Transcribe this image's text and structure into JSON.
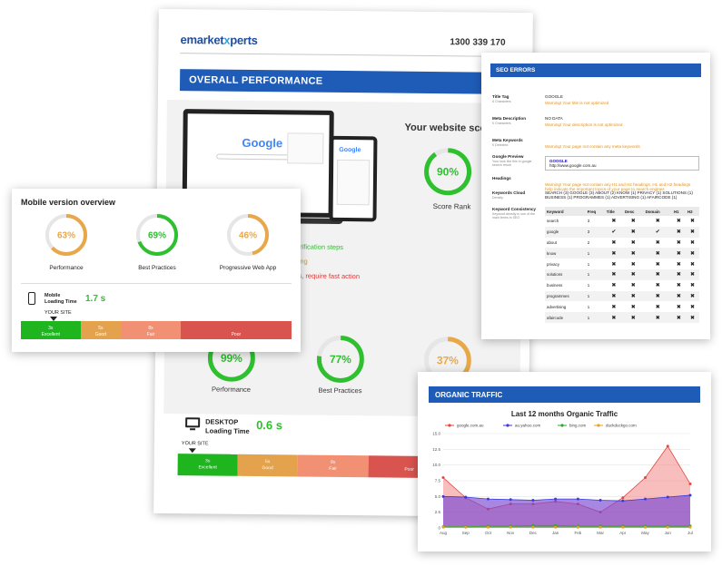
{
  "main_report": {
    "logo_prefix": "emarket",
    "logo_x": "x",
    "logo_suffix": "perts",
    "phone": "1300 339 170",
    "banner": "OVERALL PERFORMANCE",
    "google_word": "Google",
    "score_title": "Your website score",
    "score_value": "90%",
    "score_percent": 90,
    "score_rank_label": "Score Rank",
    "legend_lines": [
      {
        "text": "verification steps",
        "color": "#2ec02e"
      },
      {
        "text": "rning",
        "color": "#e2911c"
      },
      {
        "text": "ors, require fast action",
        "color": "#e03333"
      }
    ],
    "desktop_scores": [
      {
        "label": "Performance",
        "value": "99%",
        "percent": 99,
        "color": "#2ec02e"
      },
      {
        "label": "Best Practices",
        "value": "77%",
        "percent": 77,
        "color": "#2ec02e"
      },
      {
        "label": "",
        "value": "37%",
        "percent": 37,
        "color": "#e8a84a"
      }
    ],
    "desktop_label": "DESKTOP",
    "desktop_sub": "Loading Time",
    "desktop_time": "0.6 s",
    "your_site": "YOUR SITE",
    "speed_segments": [
      {
        "time": "3s",
        "label": "Excellent",
        "color": "#1fb51f"
      },
      {
        "time": "5s",
        "label": "Good",
        "color": "#e3a24b"
      },
      {
        "time": "8s",
        "label": "Fair",
        "color": "#f19072"
      },
      {
        "time": "",
        "label": "Poor",
        "color": "#d9534f"
      }
    ]
  },
  "mobile": {
    "title": "Mobile version overview",
    "scores": [
      {
        "label": "Performance",
        "value": "63%",
        "percent": 63,
        "color": "#e8a84a"
      },
      {
        "label": "Best Practices",
        "value": "69%",
        "percent": 69,
        "color": "#2ec02e"
      },
      {
        "label": "Progressive Web App",
        "value": "46%",
        "percent": 46,
        "color": "#e8a84a"
      }
    ],
    "loading_label": "Mobile",
    "loading_sub": "Loading Time",
    "loading_time": "1.7 s",
    "your_site": "YOUR SITE",
    "segments": [
      {
        "time": "3s",
        "label": "Excellent",
        "color": "#1fb51f"
      },
      {
        "time": "5s",
        "label": "Good",
        "color": "#e3a24b"
      },
      {
        "time": "8s",
        "label": "Fair",
        "color": "#f19072"
      },
      {
        "time": "",
        "label": "Poor",
        "color": "#d9534f"
      }
    ]
  },
  "seo": {
    "banner": "SEO ERRORS",
    "rows": [
      {
        "label": "Title Tag",
        "sub": "6 Characters",
        "value": "GOOGLE",
        "warning": "Warning! Your title is not optimized"
      },
      {
        "label": "Meta Description",
        "sub": "0 Characters",
        "value": "NO DATA",
        "warning": "Warning! Your description is not optimized"
      },
      {
        "label": "Meta Keywords",
        "sub": "0 Detected",
        "value": "",
        "warning": "Warning! Your page not contain any meta keywords"
      },
      {
        "label": "Google Preview",
        "sub": "Your look like this in google search result",
        "value": "",
        "warning": ""
      },
      {
        "label": "Headings",
        "sub": "",
        "value": "",
        "warning": "Warning! Your page not contain any H1 and H2 headings. H1 and H2 headings help indicate the important topics of your page to search engines"
      },
      {
        "label": "Keywords Cloud",
        "sub": "Density",
        "value": "SEARCH (3)   GOOGLE (3)   ABOUT (2)   KNOW (1)   PRIVACY (1)   SOLUTIONS (1)   BUSINESS (1)   PROGRAMMES (1)   ADVERTISING (1)   AFAIRCODE (1)",
        "warning": ""
      },
      {
        "label": "Keyword Consistency",
        "sub": "Keyword density is one of the main terms in SEO",
        "value": "",
        "warning": ""
      }
    ],
    "preview_title": "GOOGLE",
    "preview_url": "http://www.google.com.au",
    "table_headers": [
      "Keyword",
      "Freq",
      "Title",
      "Desc",
      "Domain",
      "H1",
      "H2"
    ],
    "table_rows": [
      {
        "keyword": "search",
        "freq": "3",
        "marks": [
          "x",
          "x",
          "x",
          "x",
          "x"
        ]
      },
      {
        "keyword": "google",
        "freq": "3",
        "marks": [
          "check",
          "x",
          "check",
          "x",
          "x"
        ]
      },
      {
        "keyword": "about",
        "freq": "2",
        "marks": [
          "x",
          "x",
          "x",
          "x",
          "x"
        ]
      },
      {
        "keyword": "know",
        "freq": "1",
        "marks": [
          "x",
          "x",
          "x",
          "x",
          "x"
        ]
      },
      {
        "keyword": "privacy",
        "freq": "1",
        "marks": [
          "x",
          "x",
          "x",
          "x",
          "x"
        ]
      },
      {
        "keyword": "solutions",
        "freq": "1",
        "marks": [
          "x",
          "x",
          "x",
          "x",
          "x"
        ]
      },
      {
        "keyword": "business",
        "freq": "1",
        "marks": [
          "x",
          "x",
          "x",
          "x",
          "x"
        ]
      },
      {
        "keyword": "programmes",
        "freq": "1",
        "marks": [
          "x",
          "x",
          "x",
          "x",
          "x"
        ]
      },
      {
        "keyword": "advertising",
        "freq": "1",
        "marks": [
          "x",
          "x",
          "x",
          "x",
          "x"
        ]
      },
      {
        "keyword": "afaircode",
        "freq": "1",
        "marks": [
          "x",
          "x",
          "x",
          "x",
          "x"
        ]
      }
    ]
  },
  "traffic": {
    "banner": "ORGANIC TRAFFIC"
  },
  "chart_data": {
    "type": "area",
    "title": "Last 12 months Organic Traffic",
    "categories": [
      "Aug",
      "Sep",
      "Oct",
      "Nov",
      "Dec",
      "Jan",
      "Feb",
      "Mar",
      "Apr",
      "May",
      "Jun",
      "Jul"
    ],
    "y_ticks": [
      "0",
      "2.5",
      "5.0",
      "7.5",
      "10.0",
      "12.5",
      "15.0"
    ],
    "ylim": [
      0,
      15
    ],
    "legend_position": "top",
    "series": [
      {
        "name": "google.com.au",
        "color": "#e8453c",
        "values": [
          8.0,
          4.8,
          3.0,
          3.8,
          3.8,
          4.2,
          3.8,
          2.5,
          4.8,
          8.0,
          13.0,
          7.0
        ]
      },
      {
        "name": "au.yahoo.com",
        "color": "#3b3bd9",
        "values": [
          5.0,
          4.9,
          4.6,
          4.5,
          4.4,
          4.6,
          4.6,
          4.4,
          4.3,
          4.6,
          4.9,
          5.2
        ]
      },
      {
        "name": "bing.com",
        "color": "#2ea82e",
        "values": [
          0.2,
          0.2,
          0.3,
          0.3,
          0.4,
          0.4,
          0.3,
          0.3,
          0.3,
          0.3,
          0.3,
          0.3
        ]
      },
      {
        "name": "duckduckgo.com",
        "color": "#e8a41c",
        "values": [
          0.1,
          0.1,
          0.1,
          0.1,
          0.1,
          0.1,
          0.1,
          0.1,
          0.1,
          0.1,
          0.1,
          0.1
        ]
      }
    ]
  }
}
